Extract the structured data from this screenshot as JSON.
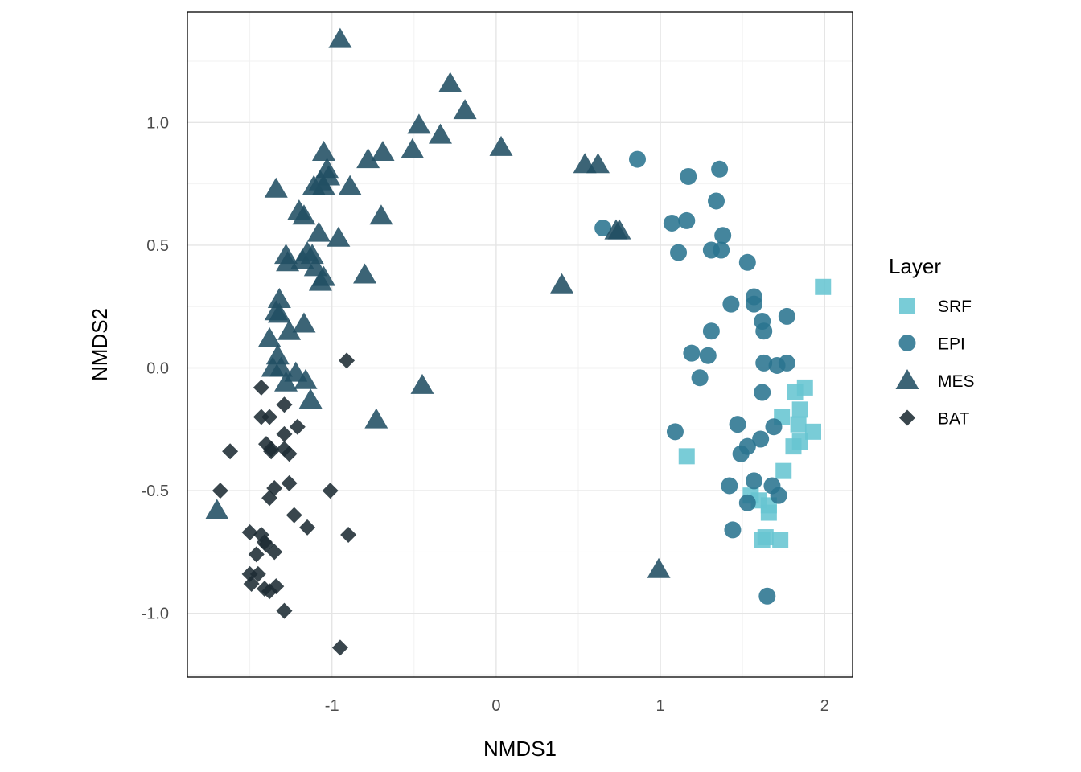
{
  "chart_data": {
    "type": "scatter",
    "title": "",
    "xlabel": "NMDS1",
    "ylabel": "NMDS2",
    "xlim": [
      -1.88,
      2.17
    ],
    "ylim": [
      -1.26,
      1.45
    ],
    "xticks": [
      -1,
      0,
      1,
      2
    ],
    "xtick_labels": [
      "-1",
      "0",
      "1",
      "2"
    ],
    "yticks": [
      -1.0,
      -0.5,
      0.0,
      0.5,
      1.0
    ],
    "ytick_labels": [
      "-1.0",
      "-0.5",
      "0.0",
      "0.5",
      "1.0"
    ],
    "grid": true,
    "legend": {
      "title": "Layer",
      "position": "right",
      "entries": [
        {
          "label": "SRF",
          "shape": "square",
          "color": "#67C5D2"
        },
        {
          "label": "EPI",
          "shape": "circle",
          "color": "#2A7490"
        },
        {
          "label": "MES",
          "shape": "triangle",
          "color": "#214F63"
        },
        {
          "label": "BAT",
          "shape": "diamond",
          "color": "#1E2C34"
        }
      ]
    },
    "series": [
      {
        "name": "SRF",
        "shape": "square",
        "color": "#67C5D2",
        "points": [
          [
            1.99,
            0.33
          ],
          [
            1.88,
            -0.08
          ],
          [
            1.82,
            -0.1
          ],
          [
            1.85,
            -0.17
          ],
          [
            1.74,
            -0.2
          ],
          [
            1.84,
            -0.23
          ],
          [
            1.93,
            -0.26
          ],
          [
            1.85,
            -0.3
          ],
          [
            1.81,
            -0.32
          ],
          [
            1.16,
            -0.36
          ],
          [
            1.75,
            -0.42
          ],
          [
            1.55,
            -0.52
          ],
          [
            1.6,
            -0.54
          ],
          [
            1.66,
            -0.56
          ],
          [
            1.66,
            -0.59
          ],
          [
            1.62,
            -0.7
          ],
          [
            1.64,
            -0.69
          ],
          [
            1.73,
            -0.7
          ]
        ]
      },
      {
        "name": "EPI",
        "shape": "circle",
        "color": "#2A7490",
        "points": [
          [
            0.86,
            0.85
          ],
          [
            1.17,
            0.78
          ],
          [
            1.36,
            0.81
          ],
          [
            1.34,
            0.68
          ],
          [
            1.07,
            0.59
          ],
          [
            1.16,
            0.6
          ],
          [
            0.65,
            0.57
          ],
          [
            1.38,
            0.54
          ],
          [
            1.31,
            0.48
          ],
          [
            1.37,
            0.48
          ],
          [
            1.11,
            0.47
          ],
          [
            1.53,
            0.43
          ],
          [
            1.57,
            0.29
          ],
          [
            1.43,
            0.26
          ],
          [
            1.57,
            0.26
          ],
          [
            1.62,
            0.19
          ],
          [
            1.77,
            0.21
          ],
          [
            1.31,
            0.15
          ],
          [
            1.63,
            0.15
          ],
          [
            1.19,
            0.06
          ],
          [
            1.29,
            0.05
          ],
          [
            1.63,
            0.02
          ],
          [
            1.71,
            0.01
          ],
          [
            1.77,
            0.02
          ],
          [
            1.24,
            -0.04
          ],
          [
            1.62,
            -0.1
          ],
          [
            1.09,
            -0.26
          ],
          [
            1.47,
            -0.23
          ],
          [
            1.69,
            -0.24
          ],
          [
            1.61,
            -0.29
          ],
          [
            1.53,
            -0.32
          ],
          [
            1.49,
            -0.35
          ],
          [
            1.42,
            -0.48
          ],
          [
            1.57,
            -0.46
          ],
          [
            1.68,
            -0.48
          ],
          [
            1.72,
            -0.52
          ],
          [
            1.53,
            -0.55
          ],
          [
            1.44,
            -0.66
          ],
          [
            1.65,
            -0.93
          ]
        ]
      },
      {
        "name": "MES",
        "shape": "triangle",
        "color": "#214F63",
        "points": [
          [
            -0.95,
            1.34
          ],
          [
            -0.28,
            1.16
          ],
          [
            -0.19,
            1.05
          ],
          [
            -0.47,
            0.99
          ],
          [
            -0.34,
            0.95
          ],
          [
            0.03,
            0.9
          ],
          [
            -0.51,
            0.89
          ],
          [
            -0.69,
            0.88
          ],
          [
            -0.78,
            0.85
          ],
          [
            -1.05,
            0.88
          ],
          [
            0.54,
            0.83
          ],
          [
            0.62,
            0.83
          ],
          [
            -1.03,
            0.81
          ],
          [
            -1.02,
            0.78
          ],
          [
            -1.07,
            0.76
          ],
          [
            -1.05,
            0.74
          ],
          [
            -1.11,
            0.74
          ],
          [
            -0.89,
            0.74
          ],
          [
            -1.34,
            0.73
          ],
          [
            -1.2,
            0.64
          ],
          [
            -1.17,
            0.62
          ],
          [
            -0.7,
            0.62
          ],
          [
            -1.08,
            0.55
          ],
          [
            -0.96,
            0.53
          ],
          [
            0.73,
            0.56
          ],
          [
            0.75,
            0.56
          ],
          [
            -1.28,
            0.46
          ],
          [
            -1.15,
            0.47
          ],
          [
            -1.12,
            0.46
          ],
          [
            -1.27,
            0.43
          ],
          [
            -1.18,
            0.44
          ],
          [
            -1.1,
            0.41
          ],
          [
            -0.8,
            0.38
          ],
          [
            -1.05,
            0.37
          ],
          [
            -1.07,
            0.35
          ],
          [
            0.4,
            0.34
          ],
          [
            -1.32,
            0.28
          ],
          [
            -1.34,
            0.23
          ],
          [
            -1.32,
            0.22
          ],
          [
            -1.17,
            0.18
          ],
          [
            -1.26,
            0.15
          ],
          [
            -1.38,
            0.12
          ],
          [
            -1.33,
            0.05
          ],
          [
            -1.36,
            0.0
          ],
          [
            -1.31,
            0.0
          ],
          [
            -1.22,
            -0.02
          ],
          [
            -1.16,
            -0.05
          ],
          [
            -0.45,
            -0.07
          ],
          [
            -1.28,
            -0.06
          ],
          [
            -1.13,
            -0.13
          ],
          [
            -0.73,
            -0.21
          ],
          [
            -1.7,
            -0.58
          ],
          [
            0.99,
            -0.82
          ]
        ]
      },
      {
        "name": "BAT",
        "shape": "diamond",
        "color": "#1E2C34",
        "points": [
          [
            -0.91,
            0.03
          ],
          [
            -1.43,
            -0.08
          ],
          [
            -1.29,
            -0.15
          ],
          [
            -1.43,
            -0.2
          ],
          [
            -1.38,
            -0.2
          ],
          [
            -1.21,
            -0.24
          ],
          [
            -1.29,
            -0.27
          ],
          [
            -1.4,
            -0.31
          ],
          [
            -1.37,
            -0.33
          ],
          [
            -1.62,
            -0.34
          ],
          [
            -1.37,
            -0.34
          ],
          [
            -1.29,
            -0.33
          ],
          [
            -1.26,
            -0.35
          ],
          [
            -1.26,
            -0.47
          ],
          [
            -1.35,
            -0.49
          ],
          [
            -1.01,
            -0.5
          ],
          [
            -1.68,
            -0.5
          ],
          [
            -1.38,
            -0.53
          ],
          [
            -1.23,
            -0.6
          ],
          [
            -1.15,
            -0.65
          ],
          [
            -0.9,
            -0.68
          ],
          [
            -1.5,
            -0.67
          ],
          [
            -1.43,
            -0.68
          ],
          [
            -1.41,
            -0.71
          ],
          [
            -1.4,
            -0.72
          ],
          [
            -1.35,
            -0.75
          ],
          [
            -1.46,
            -0.76
          ],
          [
            -1.5,
            -0.84
          ],
          [
            -1.45,
            -0.84
          ],
          [
            -1.49,
            -0.88
          ],
          [
            -1.41,
            -0.9
          ],
          [
            -1.38,
            -0.91
          ],
          [
            -1.34,
            -0.89
          ],
          [
            -1.29,
            -0.99
          ],
          [
            -0.95,
            -1.14
          ]
        ]
      }
    ]
  }
}
